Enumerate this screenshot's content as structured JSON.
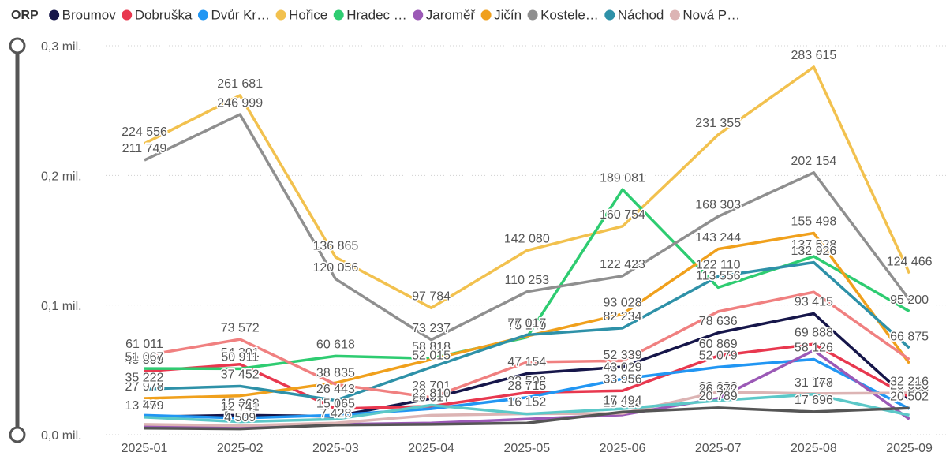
{
  "chart_data": {
    "type": "line",
    "legend_title": "ORP",
    "categories": [
      "2025-01",
      "2025-02",
      "2025-03",
      "2025-04",
      "2025-05",
      "2025-06",
      "2025-07",
      "2025-08",
      "2025-09"
    ],
    "ylim": [
      0,
      300000
    ],
    "yticks": [
      {
        "value": 0,
        "label": "0,0 mil."
      },
      {
        "value": 100000,
        "label": "0,1 mil."
      },
      {
        "value": 200000,
        "label": "0,2 mil."
      },
      {
        "value": 300000,
        "label": "0,3 mil."
      }
    ],
    "grid": true,
    "legend": "top",
    "series": [
      {
        "name": "Broumov",
        "color": "#16164a",
        "values": [
          13799,
          15068,
          14184,
          28000,
          47154,
          52339,
          78636,
          93415,
          26848
        ],
        "value_labels": [
          "13 799",
          "15 068",
          "14 184",
          null,
          "47 154",
          "52 339",
          "78 636",
          "93 415",
          "26 848"
        ]
      },
      {
        "name": "Dobruška",
        "color": "#e8384f",
        "values": [
          48809,
          54301,
          20000,
          22000,
          32508,
          33956,
          60869,
          69888,
          29090
        ],
        "value_labels": [
          "48 809",
          "54 301",
          null,
          null,
          "32 508",
          "33 956",
          "60 869",
          "69 888",
          "29 090"
        ]
      },
      {
        "name": "Dvůr Kr…",
        "color": "#2196f3",
        "values": [
          15000,
          12741,
          15065,
          20017,
          28715,
          43029,
          52079,
          58126,
          20000
        ],
        "value_labels": [
          null,
          "12 741",
          "15 065",
          "20 017",
          "28 715",
          "43 029",
          "52 079",
          "58 126",
          null
        ]
      },
      {
        "name": "Hořice",
        "color": "#f2c14e",
        "values": [
          224556,
          261681,
          136865,
          97784,
          142080,
          160754,
          231355,
          283615,
          124466
        ],
        "value_labels": [
          "224 556",
          "261 681",
          "136 865",
          "97 784",
          "142 080",
          "160 754",
          "231 355",
          "283 615",
          "124 466"
        ]
      },
      {
        "name": "Hradec …",
        "color": "#2ecc71",
        "values": [
          51067,
          50911,
          60618,
          58818,
          75140,
          189081,
          113556,
          137528,
          95200
        ],
        "value_labels": [
          "51 067",
          "50 911",
          "60 618",
          "58 818",
          "75 140",
          "189 081",
          "113 556",
          "137 528",
          "95 200"
        ]
      },
      {
        "name": "Jaroměř",
        "color": "#9b59b6",
        "values": [
          6000,
          5364,
          8000,
          9000,
          12000,
          15319,
          28038,
          65000,
          12000
        ],
        "value_labels": [
          null,
          "5 364",
          null,
          null,
          null,
          "15 319",
          "28 038",
          null,
          null
        ]
      },
      {
        "name": "Jičín",
        "color": "#f0a01c",
        "values": [
          27978,
          30000,
          40000,
          58000,
          76000,
          93028,
          143244,
          155498,
          55000
        ],
        "value_labels": [
          "27 978",
          null,
          null,
          null,
          null,
          "93 028",
          "143 244",
          "155 498",
          null
        ]
      },
      {
        "name": "Kostele…",
        "color": "#8f8f8f",
        "values": [
          211749,
          246999,
          120056,
          73237,
          110253,
          122423,
          168303,
          202154,
          104000
        ],
        "value_labels": [
          "211 749",
          "246 999",
          "120 056",
          "73 237",
          "110 253",
          "122 423",
          "168 303",
          "202 154",
          null
        ]
      },
      {
        "name": "Náchod",
        "color": "#2e91a8",
        "values": [
          35222,
          37452,
          26443,
          52015,
          77017,
          82234,
          122110,
          132926,
          66875
        ],
        "value_labels": [
          "35 222",
          "37 452",
          "26 443",
          "52 015",
          "77 017",
          "82 234",
          "122 110",
          "132 926",
          "66 875"
        ]
      },
      {
        "name": "Nová P…",
        "color": "#dcb4b4",
        "values": [
          8000,
          7000,
          9000,
          15000,
          16152,
          16432,
          33000,
          31741,
          32216
        ],
        "value_labels": [
          null,
          null,
          null,
          null,
          "16 152",
          "16 432",
          null,
          "31 741",
          "32 216"
        ]
      },
      {
        "color": "#f08080",
        "values": [
          61011,
          73572,
          38835,
          28701,
          56000,
          57000,
          95000,
          110000,
          58000
        ],
        "value_labels": [
          "61 011",
          "73 572",
          "38 835",
          "28 701",
          null,
          null,
          null,
          null,
          null
        ]
      },
      {
        "color": "#5cc8c8",
        "values": [
          13479,
          10000,
          12000,
          22810,
          16000,
          20000,
          26372,
          31178,
          15000
        ],
        "value_labels": [
          "13 479",
          null,
          null,
          "22 810",
          null,
          null,
          "26 372",
          "31 178",
          null
        ]
      },
      {
        "color": "#555555",
        "values": [
          5000,
          4509,
          7428,
          8000,
          9000,
          17494,
          20789,
          17696,
          20502
        ],
        "value_labels": [
          null,
          "4 509",
          "7 428",
          null,
          null,
          "17 494",
          "20 789",
          "17 696",
          "20 502"
        ]
      }
    ]
  }
}
